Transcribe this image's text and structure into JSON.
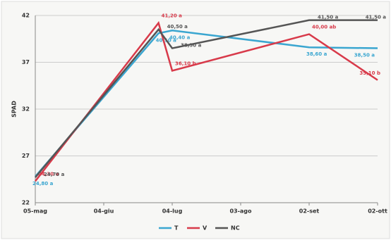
{
  "chart_data": {
    "type": "line",
    "y_label": "SPAD",
    "x": [
      0,
      54,
      60,
      120,
      150
    ],
    "xlim": [
      0,
      150
    ],
    "xticks": [
      {
        "value": 0,
        "label": "05-mag"
      },
      {
        "value": 30,
        "label": "04-giu"
      },
      {
        "value": 60,
        "label": "04-lug"
      },
      {
        "value": 90,
        "label": "03-ago"
      },
      {
        "value": 120,
        "label": "02-set"
      },
      {
        "value": 150,
        "label": "02-ott"
      }
    ],
    "ylim": [
      22,
      42
    ],
    "yticks": [
      22,
      27,
      32,
      37,
      42
    ],
    "grid": true,
    "series": [
      {
        "name": "T",
        "color": "#3aa6d0",
        "values": [
          24.8,
          40.1,
          40.4,
          38.6,
          38.5
        ],
        "value_labels": [
          "24,80 a",
          "40,10 a",
          "40,40 a",
          "38,60 a",
          "38,50 a"
        ]
      },
      {
        "name": "V",
        "color": "#d83a4a",
        "values": [
          24.3,
          41.2,
          36.1,
          40.0,
          35.1
        ],
        "value_labels": [
          "24,30 a",
          "41,20 a",
          "36,10 b",
          "40,00 ab",
          "35,10 b"
        ]
      },
      {
        "name": "NC",
        "color": "#555555",
        "values": [
          24.7,
          40.5,
          38.5,
          41.5,
          41.5
        ],
        "value_labels": [
          "24,70 a",
          "40,50 a",
          "38,50 a",
          "41,50 a",
          "41,50 a"
        ]
      }
    ],
    "legend": "bottom"
  }
}
